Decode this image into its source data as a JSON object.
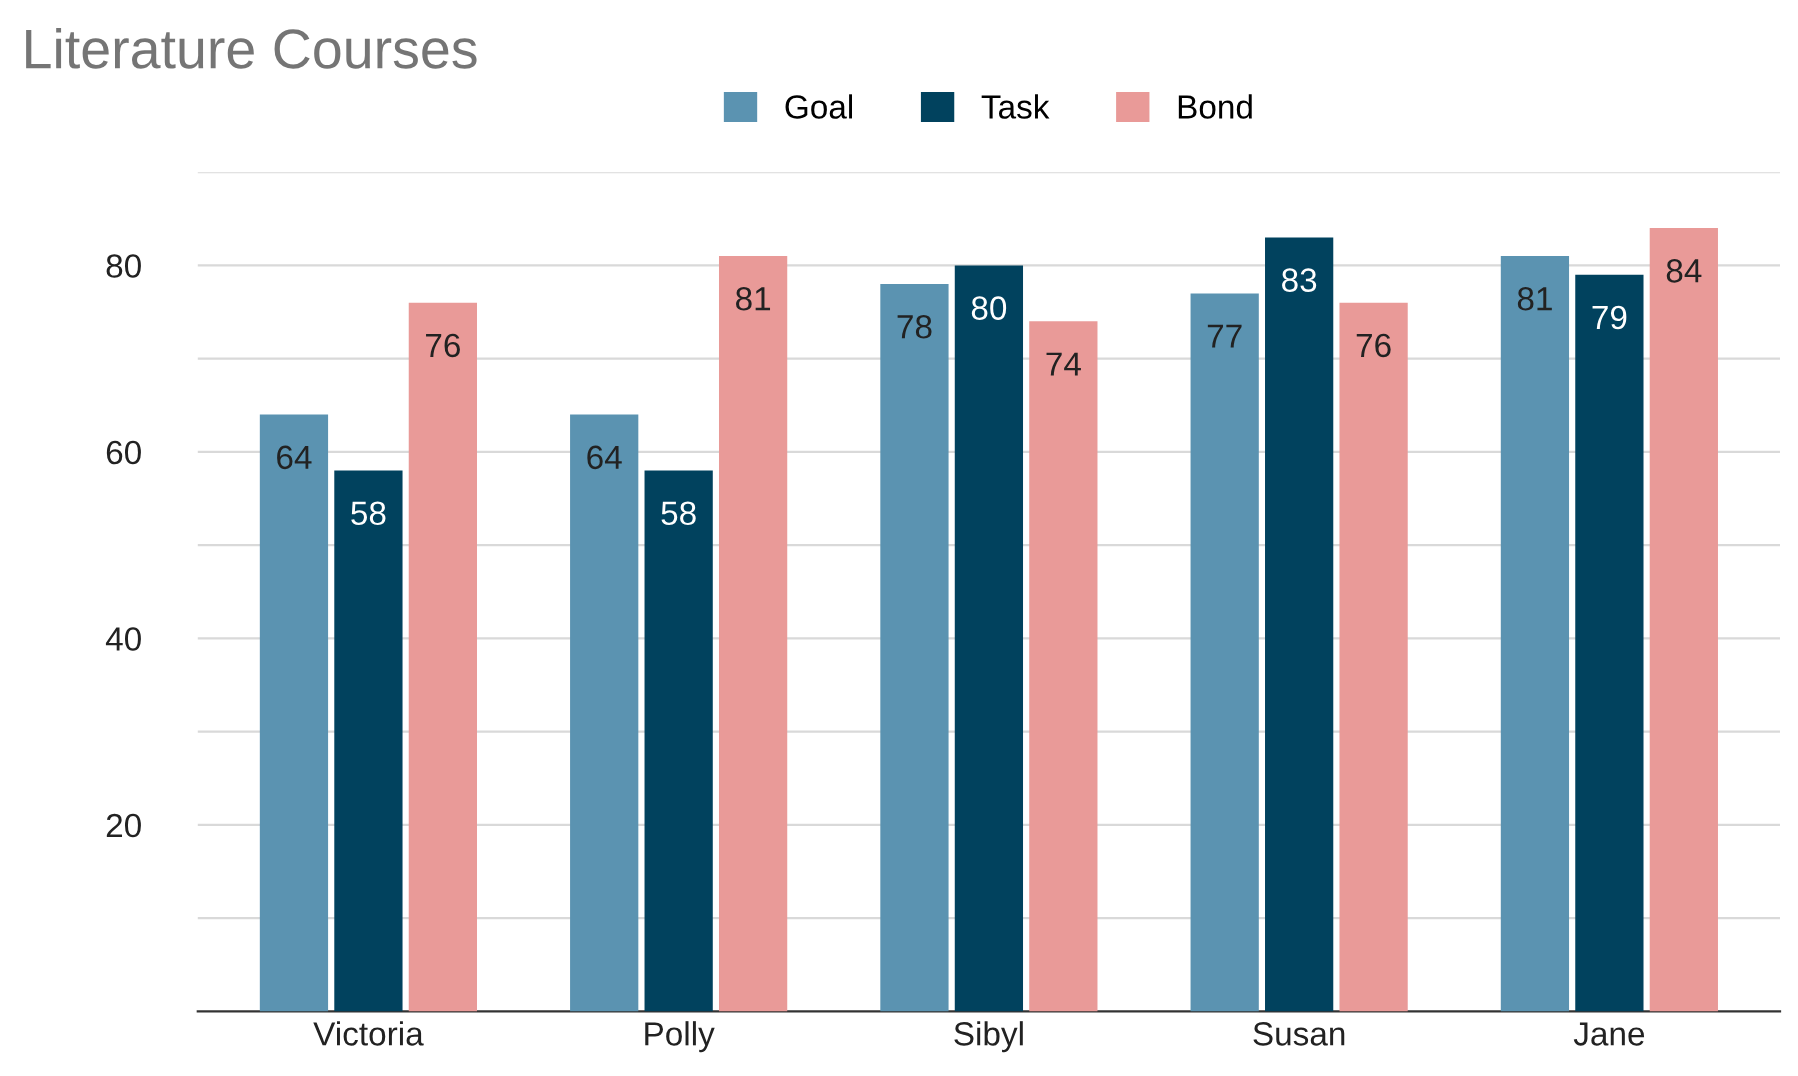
{
  "chart_data": {
    "type": "bar",
    "title": "Literature Courses",
    "categories": [
      "Victoria",
      "Polly",
      "Sibyl",
      "Susan",
      "Jane"
    ],
    "series": [
      {
        "name": "Goal",
        "color": "#5b93b1",
        "values": [
          64,
          64,
          78,
          77,
          81
        ]
      },
      {
        "name": "Task",
        "color": "#01425e",
        "values": [
          58,
          58,
          80,
          83,
          79
        ]
      },
      {
        "name": "Bond",
        "color": "#e99a98",
        "values": [
          76,
          81,
          74,
          76,
          84
        ]
      }
    ],
    "ylim": [
      0,
      90
    ],
    "yticks": [
      {
        "value": 10,
        "label": null
      },
      20,
      {
        "value": 30,
        "label": null
      },
      40,
      {
        "value": 50,
        "label": null
      },
      60,
      {
        "value": 70,
        "label": null
      },
      80,
      {
        "value": 90,
        "label": null
      }
    ],
    "grid": "y",
    "legend": "top",
    "data_labels": true
  }
}
